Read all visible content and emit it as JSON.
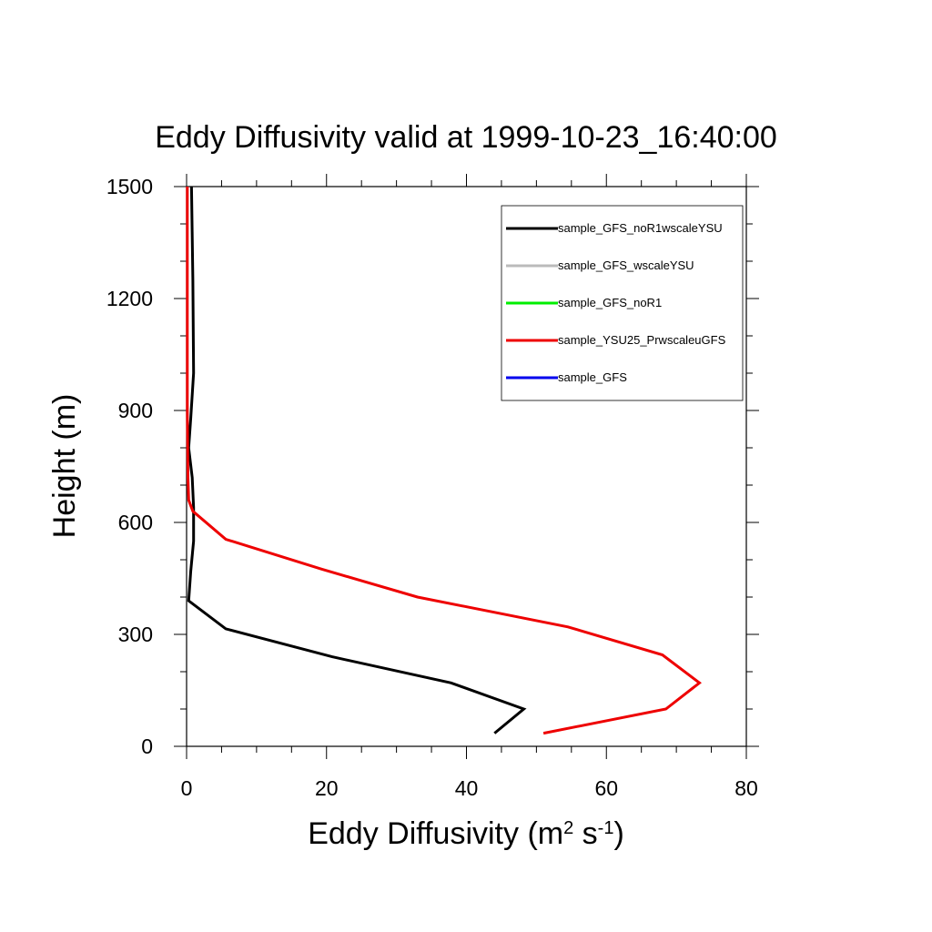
{
  "chart_data": {
    "type": "line",
    "title": "Eddy Diffusivity valid at 1999-10-23_16:40:00",
    "xlabel": {
      "text": "Eddy Diffusivity (m",
      "sup1": "2",
      "mid": " s",
      "sup2": "-1",
      "end": ")"
    },
    "ylabel": "Height (m)",
    "xlim": [
      0,
      80
    ],
    "ylim": [
      0,
      1500
    ],
    "xticks": [
      0,
      20,
      40,
      60,
      80
    ],
    "yticks": [
      0,
      300,
      600,
      900,
      1200,
      1500
    ],
    "xtick_labels": [
      "0",
      "20",
      "40",
      "60",
      "80"
    ],
    "ytick_labels": [
      "0",
      "300",
      "600",
      "900",
      "1200",
      "1500"
    ],
    "grid": false,
    "legend_position": "top-right",
    "series": [
      {
        "name": "sample_GFS_noR1wscaleYSU",
        "color": "#000000",
        "x": [
          44.0,
          48.2,
          37.8,
          20.8,
          5.6,
          0.3,
          0.6,
          1.0,
          1.0,
          0.8,
          0.3,
          0.6,
          1.0,
          0.9,
          0.7
        ],
        "y": [
          35,
          100,
          170,
          240,
          315,
          390,
          470,
          550,
          640,
          720,
          800,
          880,
          1000,
          1250,
          1500
        ]
      },
      {
        "name": "sample_GFS_wscaleYSU",
        "color": "#bbbbbb",
        "x": [],
        "y": []
      },
      {
        "name": "sample_GFS_noR1",
        "color": "#00ee00",
        "x": [],
        "y": []
      },
      {
        "name": "sample_YSU25_PrwscaleuGFS",
        "color": "#ee0000",
        "x": [
          51.0,
          68.5,
          73.3,
          68.0,
          54.5,
          33.0,
          19.3,
          5.6,
          0.9,
          0.3,
          0.2,
          0.1,
          0.1,
          0.1,
          0.1
        ],
        "y": [
          35,
          100,
          170,
          245,
          320,
          400,
          475,
          555,
          630,
          660,
          720,
          900,
          1100,
          1300,
          1500
        ]
      },
      {
        "name": "sample_GFS",
        "color": "#0000ee",
        "x": [],
        "y": []
      }
    ]
  }
}
